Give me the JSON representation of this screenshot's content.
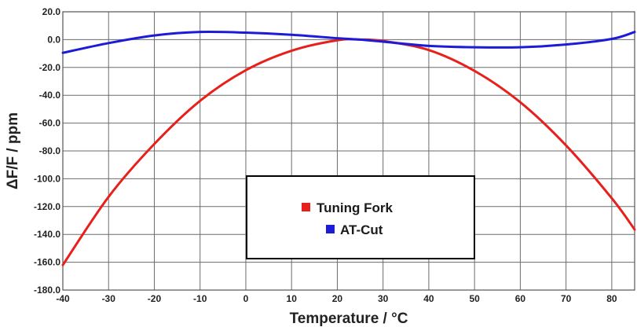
{
  "chart_data": {
    "type": "line",
    "xlabel": "Temperature / °C",
    "ylabel": "ΔF/F / ppm",
    "xlim": [
      -40,
      85
    ],
    "ylim": [
      -180,
      20
    ],
    "grid": true,
    "legend_position": "center-bottom",
    "x_ticks": [
      "-40",
      "-30",
      "-20",
      "-10",
      "0",
      "10",
      "20",
      "30",
      "40",
      "50",
      "60",
      "70",
      "80"
    ],
    "y_ticks": [
      "20.0",
      "0.0",
      "-20.0",
      "-40.0",
      "-60.0",
      "-80.0",
      "-100.0",
      "-120.0",
      "-140.0",
      "-160.0",
      "-180.0"
    ],
    "series": [
      {
        "name": "Tuning Fork",
        "color": "#e8201c",
        "x": [
          -40,
          -30,
          -20,
          -10,
          0,
          10,
          20,
          25,
          30,
          40,
          50,
          60,
          70,
          80,
          85
        ],
        "y": [
          -162.0,
          -113.0,
          -75.0,
          -44.0,
          -22.0,
          -8.0,
          -0.5,
          0.0,
          -1.0,
          -7.5,
          -22.5,
          -45.0,
          -76.0,
          -114.0,
          -136.5
        ]
      },
      {
        "name": "AT-Cut",
        "color": "#1c1cd8",
        "x": [
          -40,
          -30,
          -20,
          -10,
          0,
          10,
          20,
          25,
          30,
          40,
          50,
          60,
          70,
          80,
          85
        ],
        "y": [
          -9.5,
          -2.5,
          3.0,
          5.5,
          5.0,
          3.5,
          1.0,
          0.0,
          -1.5,
          -4.5,
          -5.5,
          -5.5,
          -3.5,
          0.5,
          5.5
        ]
      }
    ]
  }
}
